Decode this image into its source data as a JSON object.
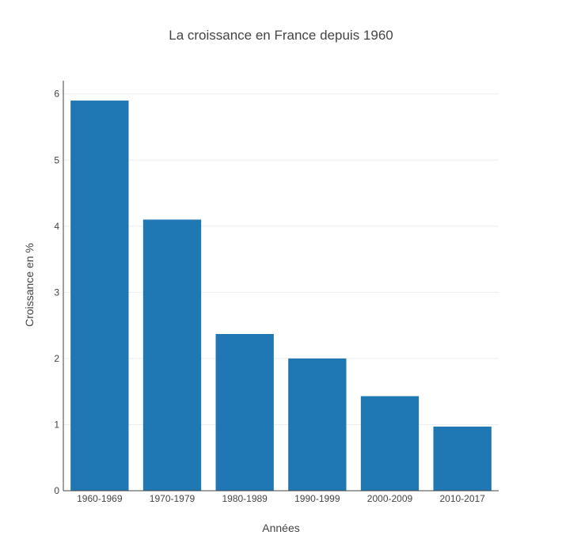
{
  "chart_data": {
    "type": "bar",
    "title": "La croissance en France depuis 1960",
    "xlabel": "Années",
    "ylabel": "Croissance en %",
    "categories": [
      "1960-1969",
      "1970-1979",
      "1980-1989",
      "1990-1999",
      "2000-2009",
      "2010-2017"
    ],
    "values": [
      5.9,
      4.1,
      2.37,
      2.0,
      1.43,
      0.97
    ],
    "ylim": [
      0,
      6.2
    ],
    "yticks": [
      "0",
      "1",
      "2",
      "3",
      "4",
      "5",
      "6"
    ],
    "grid": true,
    "bar_color": "#1f77b4",
    "grid_color": "#eeeeee",
    "axis_color": "#444444",
    "text_color": "#444444"
  }
}
